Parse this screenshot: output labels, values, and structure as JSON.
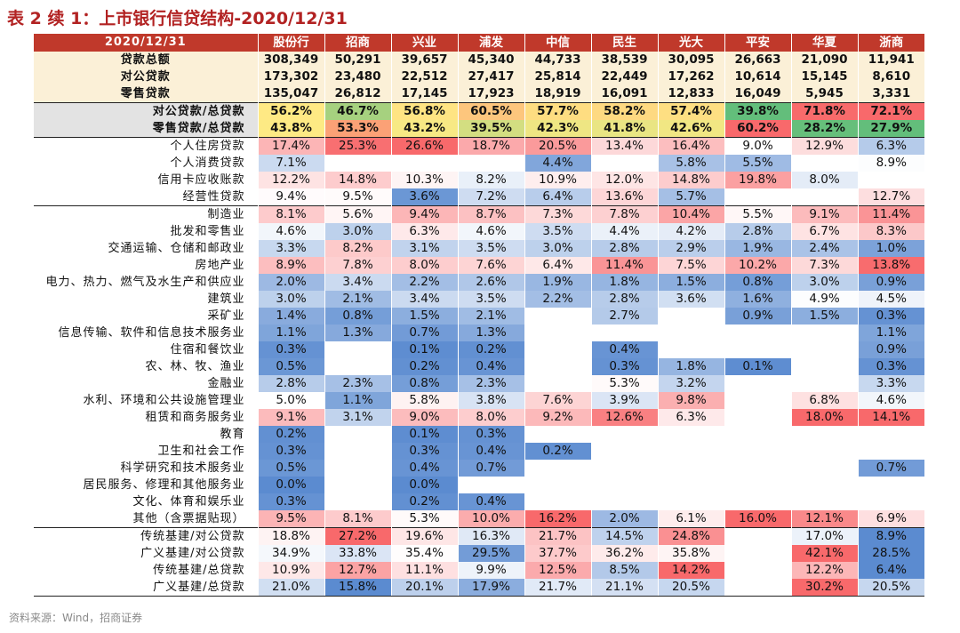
{
  "title": "表 2 续 1：上市银行信贷结构-2020/12/31",
  "source": "资料来源：Wind，招商证券",
  "header": {
    "date": "2020/12/31",
    "banks": [
      "股份行",
      "招商",
      "兴业",
      "浦发",
      "中信",
      "民生",
      "光大",
      "平安",
      "华夏",
      "浙商"
    ]
  },
  "sections": [
    {
      "id": "totals",
      "rows": [
        {
          "label": "贷款总额",
          "values": [
            "308,349",
            "50,291",
            "39,657",
            "45,340",
            "44,733",
            "38,539",
            "30,095",
            "26,663",
            "21,090",
            "11,941"
          ]
        },
        {
          "label": "对公贷款",
          "values": [
            "173,302",
            "23,480",
            "22,512",
            "27,417",
            "25,814",
            "22,449",
            "17,262",
            "10,614",
            "15,145",
            "8,610"
          ]
        },
        {
          "label": "零售贷款",
          "values": [
            "135,047",
            "26,812",
            "17,145",
            "17,923",
            "18,919",
            "16,091",
            "12,833",
            "16,049",
            "5,945",
            "3,331"
          ]
        }
      ]
    },
    {
      "id": "ratios",
      "rows": [
        {
          "label": "对公贷款/总贷款",
          "values": [
            "56.2%",
            "46.7%",
            "56.8%",
            "60.5%",
            "57.7%",
            "58.2%",
            "57.4%",
            "39.8%",
            "71.8%",
            "72.1%"
          ]
        },
        {
          "label": "零售贷款/总贷款",
          "values": [
            "43.8%",
            "53.3%",
            "43.2%",
            "39.5%",
            "42.3%",
            "41.8%",
            "42.6%",
            "60.2%",
            "28.2%",
            "27.9%"
          ]
        }
      ]
    },
    {
      "id": "retail",
      "rows": [
        {
          "label": "个人住房贷款",
          "values": [
            "17.4%",
            "25.3%",
            "26.6%",
            "18.7%",
            "20.5%",
            "13.4%",
            "16.4%",
            "9.0%",
            "12.9%",
            "6.3%"
          ]
        },
        {
          "label": "个人消费贷款",
          "values": [
            "7.1%",
            "",
            "",
            "",
            "4.4%",
            "",
            "5.8%",
            "5.5%",
            "",
            "8.9%"
          ]
        },
        {
          "label": "信用卡应收账款",
          "values": [
            "12.2%",
            "14.8%",
            "10.3%",
            "8.2%",
            "10.9%",
            "12.0%",
            "14.8%",
            "19.8%",
            "8.0%",
            ""
          ]
        },
        {
          "label": "经营性贷款",
          "values": [
            "9.4%",
            "9.5%",
            "3.6%",
            "7.2%",
            "6.4%",
            "13.6%",
            "5.7%",
            "",
            "",
            "12.7%"
          ]
        }
      ]
    },
    {
      "id": "industry",
      "rows": [
        {
          "label": "制造业",
          "values": [
            "8.1%",
            "5.6%",
            "9.4%",
            "8.7%",
            "7.3%",
            "7.8%",
            "10.4%",
            "5.5%",
            "9.1%",
            "11.4%"
          ]
        },
        {
          "label": "批发和零售业",
          "values": [
            "4.6%",
            "3.0%",
            "6.3%",
            "4.6%",
            "3.5%",
            "4.4%",
            "4.2%",
            "2.8%",
            "6.7%",
            "8.3%"
          ]
        },
        {
          "label": "交通运输、仓储和邮政业",
          "values": [
            "3.3%",
            "8.2%",
            "3.1%",
            "3.5%",
            "3.0%",
            "2.8%",
            "2.9%",
            "1.9%",
            "2.4%",
            "1.0%"
          ]
        },
        {
          "label": "房地产业",
          "values": [
            "8.9%",
            "7.8%",
            "8.0%",
            "7.6%",
            "6.4%",
            "11.4%",
            "7.5%",
            "10.2%",
            "7.3%",
            "13.8%"
          ]
        },
        {
          "label": "电力、热力、燃气及水生产和供应业",
          "values": [
            "2.0%",
            "3.4%",
            "2.2%",
            "2.6%",
            "1.9%",
            "1.8%",
            "1.5%",
            "0.8%",
            "3.0%",
            "0.9%"
          ]
        },
        {
          "label": "建筑业",
          "values": [
            "3.0%",
            "2.1%",
            "3.4%",
            "3.5%",
            "2.2%",
            "2.8%",
            "3.6%",
            "1.6%",
            "4.9%",
            "4.5%"
          ]
        },
        {
          "label": "采矿业",
          "values": [
            "1.4%",
            "0.8%",
            "1.5%",
            "2.1%",
            "",
            "2.7%",
            "",
            "0.9%",
            "1.5%",
            "0.3%"
          ]
        },
        {
          "label": "信息传输、软件和信息技术服务业",
          "values": [
            "1.1%",
            "1.3%",
            "0.7%",
            "1.3%",
            "",
            "",
            "",
            "",
            "",
            "1.1%"
          ]
        },
        {
          "label": "住宿和餐饮业",
          "values": [
            "0.3%",
            "",
            "0.1%",
            "0.2%",
            "",
            "0.4%",
            "",
            "",
            "",
            "0.9%"
          ]
        },
        {
          "label": "农、林、牧、渔业",
          "values": [
            "0.5%",
            "",
            "0.2%",
            "0.4%",
            "",
            "0.3%",
            "1.8%",
            "0.1%",
            "",
            "0.3%"
          ]
        },
        {
          "label": "金融业",
          "values": [
            "2.8%",
            "2.3%",
            "0.8%",
            "2.3%",
            "",
            "5.3%",
            "3.2%",
            "",
            "",
            "3.3%"
          ]
        },
        {
          "label": "水利、环境和公共设施管理业",
          "values": [
            "5.0%",
            "1.1%",
            "5.8%",
            "3.8%",
            "7.6%",
            "3.9%",
            "9.8%",
            "",
            "6.8%",
            "4.6%"
          ]
        },
        {
          "label": "租赁和商务服务业",
          "values": [
            "9.1%",
            "3.1%",
            "9.0%",
            "8.0%",
            "9.2%",
            "12.6%",
            "6.3%",
            "",
            "18.0%",
            "14.1%"
          ]
        },
        {
          "label": "教育",
          "values": [
            "0.2%",
            "",
            "0.1%",
            "0.3%",
            "",
            "",
            "",
            "",
            "",
            ""
          ]
        },
        {
          "label": "卫生和社会工作",
          "values": [
            "0.3%",
            "",
            "0.3%",
            "0.4%",
            "0.2%",
            "",
            "",
            "",
            "",
            ""
          ]
        },
        {
          "label": "科学研究和技术服务业",
          "values": [
            "0.5%",
            "",
            "0.4%",
            "0.7%",
            "",
            "",
            "",
            "",
            "",
            "0.7%"
          ]
        },
        {
          "label": "居民服务、修理和其他服务业",
          "values": [
            "0.0%",
            "",
            "0.0%",
            "",
            "",
            "",
            "",
            "",
            "",
            ""
          ]
        },
        {
          "label": "文化、体育和娱乐业",
          "values": [
            "0.3%",
            "",
            "0.2%",
            "0.4%",
            "",
            "",
            "",
            "",
            "",
            ""
          ]
        },
        {
          "label": "其他（含票据贴现）",
          "values": [
            "9.5%",
            "8.1%",
            "5.3%",
            "10.0%",
            "16.2%",
            "2.0%",
            "6.1%",
            "16.0%",
            "12.1%",
            "6.9%"
          ]
        }
      ]
    },
    {
      "id": "infra",
      "rows": [
        {
          "label": "传统基建/对公贷款",
          "values": [
            "18.8%",
            "27.2%",
            "19.6%",
            "16.3%",
            "21.7%",
            "14.5%",
            "24.8%",
            "",
            "17.0%",
            "8.9%"
          ]
        },
        {
          "label": "广义基建/对公贷款",
          "values": [
            "34.9%",
            "33.8%",
            "35.4%",
            "29.5%",
            "37.7%",
            "36.2%",
            "35.8%",
            "",
            "42.1%",
            "28.5%"
          ]
        },
        {
          "label": "传统基建/总贷款",
          "values": [
            "10.9%",
            "12.7%",
            "11.1%",
            "9.9%",
            "12.5%",
            "8.5%",
            "14.2%",
            "",
            "12.2%",
            "6.4%"
          ]
        },
        {
          "label": "广义基建/总贷款",
          "values": [
            "21.0%",
            "15.8%",
            "20.1%",
            "17.9%",
            "21.7%",
            "21.1%",
            "20.5%",
            "",
            "30.2%",
            "20.5%"
          ]
        }
      ]
    }
  ],
  "colors": {
    "title": "#B22222",
    "header_bg": "#C0392B",
    "summary_bg": "#FBF0D7",
    "heat_low": "#5B8BD0",
    "heat_mid": "#FFFFFF",
    "heat_high": "#F8696B",
    "ratio_low": "#63BE7B",
    "ratio_mid": "#FFEB84",
    "ratio_high": "#F8696B"
  }
}
